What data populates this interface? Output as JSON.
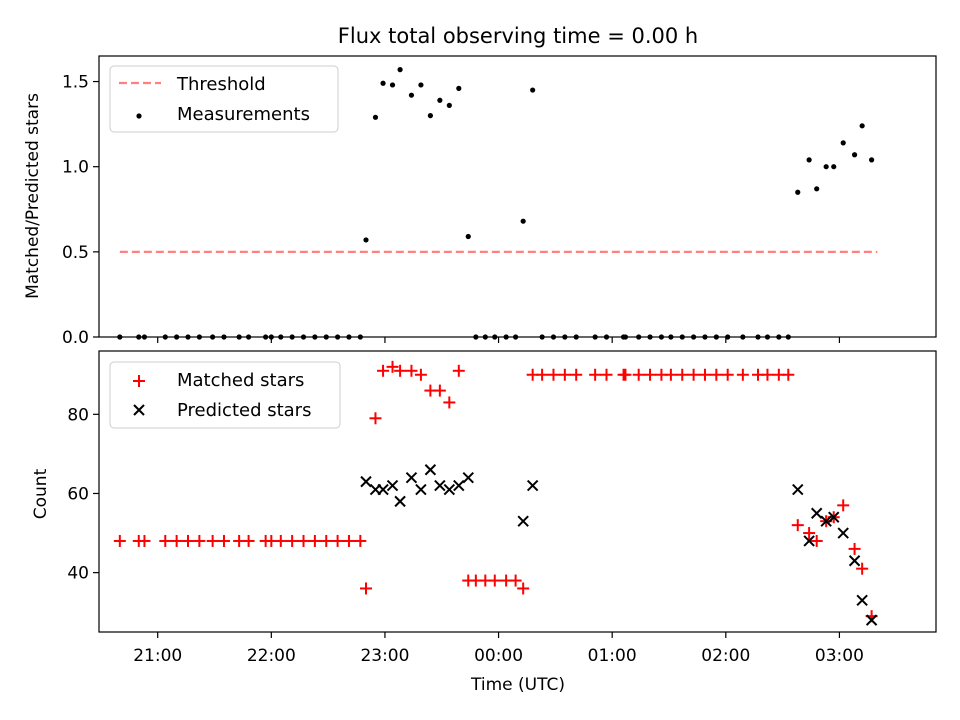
{
  "figure": {
    "title": "Flux total observing time = 0.00 h",
    "xlabel": "Time (UTC)",
    "xticklabels": [
      "21:00",
      "22:00",
      "23:00",
      "00:00",
      "01:00",
      "02:00",
      "03:00"
    ]
  },
  "chart_data": [
    {
      "type": "scatter",
      "title": "Flux total observing time = 0.00 h",
      "xlabel": "",
      "ylabel": "Matched/Predicted stars",
      "xlim": [
        "20:29",
        "03:51"
      ],
      "ylim": [
        0,
        1.65
      ],
      "yticks": [
        0.0,
        0.5,
        1.0,
        1.5
      ],
      "yticklabels": [
        "0.0",
        "0.5",
        "1.0",
        "1.5"
      ],
      "legend_position": "upper-left",
      "threshold": {
        "name": "Threshold",
        "value": 0.5,
        "x_range": [
          "20:40",
          "03:20"
        ],
        "color": "#ff8080",
        "style": "dashed"
      },
      "series": [
        {
          "name": "Measurements",
          "marker": "dot",
          "color": "#000000",
          "points": [
            [
              "20:40",
              0.0
            ],
            [
              "20:50",
              0.0
            ],
            [
              "20:53",
              0.0
            ],
            [
              "21:04",
              0.0
            ],
            [
              "21:10",
              0.0
            ],
            [
              "21:16",
              0.0
            ],
            [
              "21:22",
              0.0
            ],
            [
              "21:29",
              0.0
            ],
            [
              "21:35",
              0.0
            ],
            [
              "21:43",
              0.0
            ],
            [
              "21:48",
              0.0
            ],
            [
              "21:57",
              0.0
            ],
            [
              "22:00",
              0.0
            ],
            [
              "22:05",
              0.0
            ],
            [
              "22:11",
              0.0
            ],
            [
              "22:17",
              0.0
            ],
            [
              "22:23",
              0.0
            ],
            [
              "22:29",
              0.0
            ],
            [
              "22:35",
              0.0
            ],
            [
              "22:41",
              0.0
            ],
            [
              "22:47",
              0.0
            ],
            [
              "22:50",
              0.57
            ],
            [
              "22:55",
              1.29
            ],
            [
              "22:59",
              1.49
            ],
            [
              "23:04",
              1.48
            ],
            [
              "23:08",
              1.57
            ],
            [
              "23:14",
              1.42
            ],
            [
              "23:19",
              1.48
            ],
            [
              "23:24",
              1.3
            ],
            [
              "23:29",
              1.39
            ],
            [
              "23:34",
              1.36
            ],
            [
              "23:39",
              1.46
            ],
            [
              "23:44",
              0.59
            ],
            [
              "23:48",
              0.0
            ],
            [
              "23:53",
              0.0
            ],
            [
              "23:58",
              0.0
            ],
            [
              "00:04",
              0.0
            ],
            [
              "00:09",
              0.0
            ],
            [
              "00:13",
              0.68
            ],
            [
              "00:18",
              1.45
            ],
            [
              "00:23",
              0.0
            ],
            [
              "00:29",
              0.0
            ],
            [
              "00:35",
              0.0
            ],
            [
              "00:41",
              0.0
            ],
            [
              "00:51",
              0.0
            ],
            [
              "00:57",
              0.0
            ],
            [
              "01:06",
              0.0
            ],
            [
              "01:07",
              0.0
            ],
            [
              "01:14",
              0.0
            ],
            [
              "01:20",
              0.0
            ],
            [
              "01:26",
              0.0
            ],
            [
              "01:31",
              0.0
            ],
            [
              "01:37",
              0.0
            ],
            [
              "01:43",
              0.0
            ],
            [
              "01:49",
              0.0
            ],
            [
              "01:55",
              0.0
            ],
            [
              "02:01",
              0.0
            ],
            [
              "02:09",
              0.0
            ],
            [
              "02:17",
              0.0
            ],
            [
              "02:22",
              0.0
            ],
            [
              "02:28",
              0.0
            ],
            [
              "02:33",
              0.0
            ],
            [
              "02:38",
              0.85
            ],
            [
              "02:44",
              1.04
            ],
            [
              "02:48",
              0.87
            ],
            [
              "02:53",
              1.0
            ],
            [
              "02:57",
              1.0
            ],
            [
              "03:02",
              1.14
            ],
            [
              "03:08",
              1.07
            ],
            [
              "03:12",
              1.24
            ],
            [
              "03:17",
              1.04
            ]
          ]
        }
      ]
    },
    {
      "type": "scatter",
      "title": "",
      "xlabel": "Time (UTC)",
      "ylabel": "Count",
      "xlim": [
        "20:29",
        "03:51"
      ],
      "ylim": [
        25,
        96
      ],
      "yticks": [
        40,
        60,
        80
      ],
      "yticklabels": [
        "40",
        "60",
        "80"
      ],
      "legend_position": "upper-left",
      "series": [
        {
          "name": "Matched stars",
          "marker": "plus",
          "color": "#ff0000",
          "points": [
            [
              "20:40",
              48
            ],
            [
              "20:50",
              48
            ],
            [
              "20:53",
              48
            ],
            [
              "21:04",
              48
            ],
            [
              "21:10",
              48
            ],
            [
              "21:16",
              48
            ],
            [
              "21:22",
              48
            ],
            [
              "21:29",
              48
            ],
            [
              "21:35",
              48
            ],
            [
              "21:43",
              48
            ],
            [
              "21:48",
              48
            ],
            [
              "21:57",
              48
            ],
            [
              "22:00",
              48
            ],
            [
              "22:05",
              48
            ],
            [
              "22:11",
              48
            ],
            [
              "22:17",
              48
            ],
            [
              "22:23",
              48
            ],
            [
              "22:29",
              48
            ],
            [
              "22:35",
              48
            ],
            [
              "22:41",
              48
            ],
            [
              "22:47",
              48
            ],
            [
              "22:50",
              36
            ],
            [
              "22:55",
              79
            ],
            [
              "22:59",
              91
            ],
            [
              "23:04",
              92
            ],
            [
              "23:08",
              91
            ],
            [
              "23:14",
              91
            ],
            [
              "23:19",
              90
            ],
            [
              "23:24",
              86
            ],
            [
              "23:29",
              86
            ],
            [
              "23:34",
              83
            ],
            [
              "23:39",
              91
            ],
            [
              "23:44",
              38
            ],
            [
              "23:48",
              38
            ],
            [
              "23:53",
              38
            ],
            [
              "23:58",
              38
            ],
            [
              "00:04",
              38
            ],
            [
              "00:09",
              38
            ],
            [
              "00:13",
              36
            ],
            [
              "00:18",
              90
            ],
            [
              "00:23",
              90
            ],
            [
              "00:29",
              90
            ],
            [
              "00:35",
              90
            ],
            [
              "00:41",
              90
            ],
            [
              "00:51",
              90
            ],
            [
              "00:57",
              90
            ],
            [
              "01:06",
              90
            ],
            [
              "01:07",
              90
            ],
            [
              "01:14",
              90
            ],
            [
              "01:20",
              90
            ],
            [
              "01:26",
              90
            ],
            [
              "01:31",
              90
            ],
            [
              "01:37",
              90
            ],
            [
              "01:43",
              90
            ],
            [
              "01:49",
              90
            ],
            [
              "01:55",
              90
            ],
            [
              "02:01",
              90
            ],
            [
              "02:09",
              90
            ],
            [
              "02:17",
              90
            ],
            [
              "02:22",
              90
            ],
            [
              "02:28",
              90
            ],
            [
              "02:33",
              90
            ],
            [
              "02:38",
              52
            ],
            [
              "02:44",
              50
            ],
            [
              "02:48",
              48
            ],
            [
              "02:53",
              53
            ],
            [
              "02:57",
              54
            ],
            [
              "03:02",
              57
            ],
            [
              "03:08",
              46
            ],
            [
              "03:12",
              41
            ],
            [
              "03:17",
              29
            ]
          ]
        },
        {
          "name": "Predicted stars",
          "marker": "x",
          "color": "#000000",
          "points": [
            [
              "22:50",
              63
            ],
            [
              "22:55",
              61
            ],
            [
              "22:59",
              61
            ],
            [
              "23:04",
              62
            ],
            [
              "23:08",
              58
            ],
            [
              "23:14",
              64
            ],
            [
              "23:19",
              61
            ],
            [
              "23:24",
              66
            ],
            [
              "23:29",
              62
            ],
            [
              "23:34",
              61
            ],
            [
              "23:39",
              62
            ],
            [
              "23:44",
              64
            ],
            [
              "00:13",
              53
            ],
            [
              "00:18",
              62
            ],
            [
              "02:38",
              61
            ],
            [
              "02:44",
              48
            ],
            [
              "02:48",
              55
            ],
            [
              "02:53",
              53
            ],
            [
              "02:57",
              54
            ],
            [
              "03:02",
              50
            ],
            [
              "03:08",
              43
            ],
            [
              "03:12",
              33
            ],
            [
              "03:17",
              28
            ]
          ]
        }
      ]
    }
  ]
}
